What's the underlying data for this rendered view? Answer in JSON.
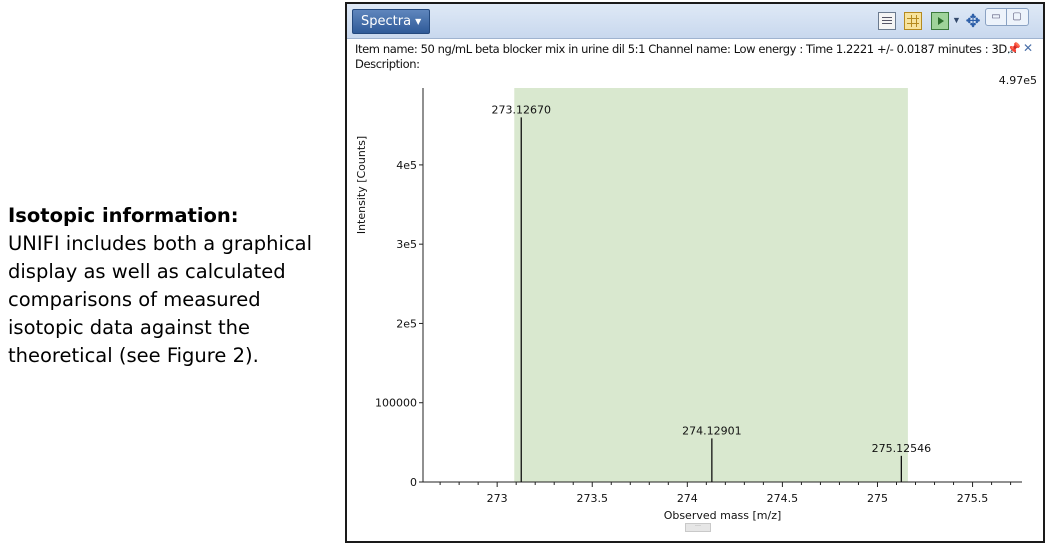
{
  "caption": {
    "title": "Isotopic information:",
    "body": "UNIFI includes both a graphical display as well as calculated comparisons of measured isotopic data against the theoretical (see Figure 2)."
  },
  "panel": {
    "tab_label": "Spectra",
    "item_line": "Item name: 50 ng/mL beta blocker mix in urine dil 5:1   Channel name: Low energy : Time 1.2221 +/- 0.0187 minutes : 3D...",
    "description_label": "Description:",
    "toolbar_icons": [
      "report-icon",
      "table-icon",
      "export-icon",
      "dropdown-caret-icon",
      "move-icon"
    ],
    "window_buttons": [
      "minimize-icon",
      "restore-icon"
    ],
    "pin_icon": "pin-icon",
    "close_icon": "close-icon"
  },
  "chart_data": {
    "type": "bar",
    "title": "",
    "xlabel": "Observed mass [m/z]",
    "ylabel": "Intensity [Counts]",
    "max_label": "4.97e5",
    "xlim": [
      272.61,
      275.76
    ],
    "ylim": [
      0,
      497000
    ],
    "x_ticks": [
      273,
      273.5,
      274,
      274.5,
      275,
      275.5
    ],
    "x_tick_labels": [
      "273",
      "273.5",
      "274",
      "274.5",
      "275",
      "275.5"
    ],
    "y_ticks": [
      0,
      100000,
      200000,
      300000,
      400000
    ],
    "y_tick_labels": [
      "0",
      "100000",
      "2e5",
      "3e5",
      "4e5"
    ],
    "highlight_range": [
      273.09,
      275.16
    ],
    "highlight_color": "#d9e8cf",
    "stick_color": "#111111",
    "peaks": [
      {
        "mz": 273.1267,
        "intensity": 460000,
        "label": "273.12670"
      },
      {
        "mz": 274.12901,
        "intensity": 55000,
        "label": "274.12901"
      },
      {
        "mz": 275.12546,
        "intensity": 33000,
        "label": "275.12546"
      }
    ]
  }
}
